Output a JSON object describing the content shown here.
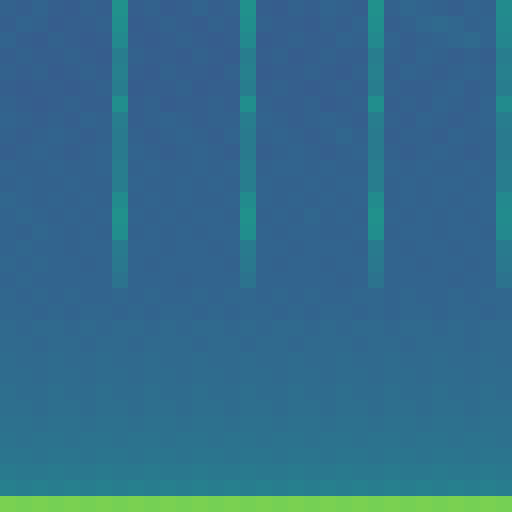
{
  "chart_data": {
    "type": "heatmap",
    "tick_labels": false,
    "cells": [
      [
        0.31,
        0.3,
        0.32,
        0.3,
        0.29,
        0.31,
        0.3,
        0.5,
        0.3,
        0.31,
        0.29,
        0.3,
        0.32,
        0.3,
        0.31,
        0.5,
        0.3,
        0.29,
        0.31,
        0.3,
        0.32,
        0.31,
        0.3,
        0.5,
        0.31,
        0.33,
        0.32,
        0.31,
        0.3,
        0.32,
        0.31,
        0.48
      ],
      [
        0.3,
        0.32,
        0.31,
        0.29,
        0.3,
        0.3,
        0.31,
        0.49,
        0.29,
        0.3,
        0.31,
        0.3,
        0.29,
        0.31,
        0.3,
        0.49,
        0.31,
        0.3,
        0.3,
        0.29,
        0.31,
        0.3,
        0.32,
        0.49,
        0.3,
        0.31,
        0.33,
        0.34,
        0.33,
        0.31,
        0.32,
        0.47
      ],
      [
        0.32,
        0.3,
        0.29,
        0.31,
        0.3,
        0.29,
        0.3,
        0.47,
        0.3,
        0.29,
        0.3,
        0.31,
        0.3,
        0.29,
        0.3,
        0.47,
        0.29,
        0.3,
        0.31,
        0.3,
        0.3,
        0.32,
        0.31,
        0.47,
        0.32,
        0.3,
        0.31,
        0.32,
        0.33,
        0.34,
        0.32,
        0.46
      ],
      [
        0.3,
        0.31,
        0.3,
        0.3,
        0.31,
        0.3,
        0.29,
        0.42,
        0.31,
        0.3,
        0.3,
        0.29,
        0.31,
        0.3,
        0.29,
        0.42,
        0.3,
        0.31,
        0.29,
        0.3,
        0.31,
        0.3,
        0.3,
        0.42,
        0.31,
        0.3,
        0.32,
        0.31,
        0.3,
        0.31,
        0.3,
        0.42
      ],
      [
        0.31,
        0.3,
        0.31,
        0.29,
        0.3,
        0.31,
        0.3,
        0.43,
        0.3,
        0.29,
        0.31,
        0.3,
        0.3,
        0.29,
        0.31,
        0.43,
        0.29,
        0.3,
        0.3,
        0.31,
        0.3,
        0.29,
        0.31,
        0.43,
        0.3,
        0.32,
        0.31,
        0.3,
        0.31,
        0.32,
        0.31,
        0.43
      ],
      [
        0.3,
        0.29,
        0.3,
        0.3,
        0.29,
        0.3,
        0.31,
        0.42,
        0.29,
        0.3,
        0.3,
        0.31,
        0.29,
        0.3,
        0.3,
        0.42,
        0.3,
        0.31,
        0.3,
        0.29,
        0.3,
        0.31,
        0.3,
        0.42,
        0.31,
        0.3,
        0.3,
        0.31,
        0.32,
        0.3,
        0.31,
        0.42
      ],
      [
        0.31,
        0.3,
        0.29,
        0.3,
        0.31,
        0.3,
        0.3,
        0.49,
        0.3,
        0.31,
        0.29,
        0.3,
        0.3,
        0.31,
        0.3,
        0.49,
        0.31,
        0.3,
        0.3,
        0.31,
        0.29,
        0.3,
        0.31,
        0.49,
        0.3,
        0.31,
        0.3,
        0.32,
        0.31,
        0.3,
        0.32,
        0.48
      ],
      [
        0.32,
        0.31,
        0.3,
        0.31,
        0.3,
        0.32,
        0.31,
        0.42,
        0.3,
        0.31,
        0.32,
        0.31,
        0.3,
        0.31,
        0.31,
        0.42,
        0.32,
        0.31,
        0.3,
        0.31,
        0.32,
        0.31,
        0.3,
        0.42,
        0.31,
        0.3,
        0.32,
        0.31,
        0.3,
        0.31,
        0.32,
        0.42
      ],
      [
        0.31,
        0.3,
        0.31,
        0.32,
        0.31,
        0.3,
        0.31,
        0.41,
        0.31,
        0.3,
        0.31,
        0.32,
        0.31,
        0.3,
        0.32,
        0.41,
        0.31,
        0.32,
        0.31,
        0.3,
        0.31,
        0.33,
        0.31,
        0.41,
        0.3,
        0.31,
        0.31,
        0.3,
        0.32,
        0.31,
        0.31,
        0.41
      ],
      [
        0.3,
        0.31,
        0.32,
        0.31,
        0.3,
        0.31,
        0.32,
        0.41,
        0.32,
        0.31,
        0.3,
        0.31,
        0.32,
        0.31,
        0.3,
        0.41,
        0.3,
        0.31,
        0.32,
        0.31,
        0.3,
        0.31,
        0.32,
        0.41,
        0.31,
        0.3,
        0.31,
        0.32,
        0.31,
        0.3,
        0.31,
        0.41
      ],
      [
        0.32,
        0.31,
        0.31,
        0.32,
        0.31,
        0.31,
        0.32,
        0.42,
        0.31,
        0.32,
        0.31,
        0.31,
        0.32,
        0.31,
        0.32,
        0.42,
        0.31,
        0.32,
        0.32,
        0.31,
        0.32,
        0.31,
        0.31,
        0.42,
        0.32,
        0.31,
        0.32,
        0.31,
        0.31,
        0.32,
        0.31,
        0.42
      ],
      [
        0.31,
        0.32,
        0.31,
        0.31,
        0.32,
        0.31,
        0.31,
        0.42,
        0.32,
        0.31,
        0.31,
        0.32,
        0.31,
        0.32,
        0.31,
        0.42,
        0.32,
        0.31,
        0.31,
        0.32,
        0.31,
        0.32,
        0.32,
        0.42,
        0.31,
        0.32,
        0.31,
        0.32,
        0.32,
        0.31,
        0.32,
        0.42
      ],
      [
        0.33,
        0.32,
        0.31,
        0.32,
        0.31,
        0.32,
        0.31,
        0.48,
        0.31,
        0.32,
        0.31,
        0.32,
        0.31,
        0.31,
        0.32,
        0.48,
        0.32,
        0.31,
        0.32,
        0.31,
        0.32,
        0.31,
        0.32,
        0.48,
        0.31,
        0.32,
        0.31,
        0.32,
        0.31,
        0.32,
        0.32,
        0.47
      ],
      [
        0.32,
        0.33,
        0.32,
        0.31,
        0.32,
        0.31,
        0.32,
        0.5,
        0.32,
        0.31,
        0.32,
        0.31,
        0.32,
        0.32,
        0.31,
        0.5,
        0.31,
        0.32,
        0.31,
        0.33,
        0.31,
        0.32,
        0.31,
        0.5,
        0.32,
        0.31,
        0.32,
        0.31,
        0.32,
        0.31,
        0.32,
        0.48
      ],
      [
        0.32,
        0.31,
        0.33,
        0.32,
        0.31,
        0.32,
        0.31,
        0.49,
        0.31,
        0.32,
        0.31,
        0.32,
        0.31,
        0.32,
        0.32,
        0.49,
        0.32,
        0.31,
        0.32,
        0.32,
        0.31,
        0.31,
        0.32,
        0.49,
        0.31,
        0.32,
        0.32,
        0.31,
        0.32,
        0.32,
        0.31,
        0.47
      ],
      [
        0.32,
        0.33,
        0.32,
        0.32,
        0.31,
        0.32,
        0.32,
        0.41,
        0.32,
        0.32,
        0.31,
        0.32,
        0.32,
        0.31,
        0.32,
        0.41,
        0.32,
        0.32,
        0.31,
        0.32,
        0.32,
        0.32,
        0.31,
        0.41,
        0.32,
        0.31,
        0.32,
        0.32,
        0.31,
        0.32,
        0.32,
        0.41
      ],
      [
        0.33,
        0.32,
        0.33,
        0.32,
        0.32,
        0.31,
        0.32,
        0.4,
        0.32,
        0.31,
        0.32,
        0.32,
        0.32,
        0.32,
        0.31,
        0.4,
        0.32,
        0.31,
        0.32,
        0.32,
        0.31,
        0.32,
        0.32,
        0.4,
        0.32,
        0.32,
        0.31,
        0.32,
        0.32,
        0.31,
        0.32,
        0.4
      ],
      [
        0.32,
        0.33,
        0.32,
        0.32,
        0.32,
        0.32,
        0.32,
        0.38,
        0.32,
        0.32,
        0.32,
        0.31,
        0.32,
        0.32,
        0.32,
        0.38,
        0.32,
        0.32,
        0.32,
        0.32,
        0.32,
        0.31,
        0.32,
        0.38,
        0.32,
        0.32,
        0.32,
        0.32,
        0.31,
        0.32,
        0.32,
        0.38
      ],
      [
        0.33,
        0.32,
        0.33,
        0.32,
        0.33,
        0.32,
        0.32,
        0.33,
        0.32,
        0.33,
        0.32,
        0.32,
        0.33,
        0.32,
        0.33,
        0.33,
        0.32,
        0.33,
        0.32,
        0.33,
        0.32,
        0.32,
        0.33,
        0.33,
        0.32,
        0.33,
        0.32,
        0.32,
        0.33,
        0.32,
        0.33,
        0.33
      ],
      [
        0.33,
        0.33,
        0.32,
        0.33,
        0.32,
        0.33,
        0.33,
        0.32,
        0.33,
        0.32,
        0.33,
        0.33,
        0.32,
        0.33,
        0.32,
        0.33,
        0.33,
        0.32,
        0.33,
        0.32,
        0.33,
        0.33,
        0.32,
        0.33,
        0.32,
        0.33,
        0.33,
        0.32,
        0.33,
        0.33,
        0.32,
        0.33
      ],
      [
        0.34,
        0.33,
        0.34,
        0.34,
        0.33,
        0.34,
        0.33,
        0.34,
        0.34,
        0.33,
        0.34,
        0.33,
        0.34,
        0.34,
        0.33,
        0.34,
        0.33,
        0.34,
        0.34,
        0.33,
        0.34,
        0.33,
        0.34,
        0.34,
        0.33,
        0.34,
        0.34,
        0.33,
        0.34,
        0.33,
        0.34,
        0.34
      ],
      [
        0.34,
        0.34,
        0.33,
        0.34,
        0.34,
        0.33,
        0.34,
        0.34,
        0.33,
        0.34,
        0.34,
        0.34,
        0.33,
        0.34,
        0.34,
        0.33,
        0.34,
        0.34,
        0.33,
        0.34,
        0.34,
        0.34,
        0.33,
        0.34,
        0.34,
        0.33,
        0.34,
        0.34,
        0.34,
        0.33,
        0.34,
        0.34
      ],
      [
        0.35,
        0.34,
        0.34,
        0.35,
        0.34,
        0.34,
        0.35,
        0.34,
        0.34,
        0.35,
        0.34,
        0.34,
        0.35,
        0.34,
        0.34,
        0.35,
        0.34,
        0.34,
        0.35,
        0.34,
        0.34,
        0.35,
        0.34,
        0.34,
        0.35,
        0.34,
        0.34,
        0.35,
        0.34,
        0.34,
        0.35,
        0.34
      ],
      [
        0.35,
        0.35,
        0.34,
        0.35,
        0.35,
        0.34,
        0.35,
        0.35,
        0.34,
        0.35,
        0.35,
        0.34,
        0.35,
        0.35,
        0.34,
        0.35,
        0.35,
        0.34,
        0.35,
        0.35,
        0.34,
        0.35,
        0.35,
        0.34,
        0.35,
        0.35,
        0.34,
        0.35,
        0.35,
        0.34,
        0.35,
        0.35
      ],
      [
        0.36,
        0.35,
        0.35,
        0.36,
        0.35,
        0.35,
        0.36,
        0.35,
        0.35,
        0.36,
        0.35,
        0.35,
        0.36,
        0.35,
        0.35,
        0.36,
        0.35,
        0.35,
        0.36,
        0.35,
        0.35,
        0.36,
        0.35,
        0.35,
        0.36,
        0.35,
        0.35,
        0.36,
        0.35,
        0.35,
        0.36,
        0.35
      ],
      [
        0.36,
        0.36,
        0.35,
        0.36,
        0.36,
        0.35,
        0.36,
        0.36,
        0.35,
        0.36,
        0.36,
        0.35,
        0.36,
        0.36,
        0.35,
        0.36,
        0.36,
        0.35,
        0.36,
        0.36,
        0.35,
        0.36,
        0.36,
        0.35,
        0.36,
        0.36,
        0.35,
        0.36,
        0.36,
        0.35,
        0.36,
        0.36
      ],
      [
        0.37,
        0.37,
        0.36,
        0.37,
        0.37,
        0.36,
        0.37,
        0.37,
        0.36,
        0.37,
        0.37,
        0.36,
        0.37,
        0.37,
        0.36,
        0.37,
        0.37,
        0.36,
        0.37,
        0.37,
        0.36,
        0.37,
        0.37,
        0.36,
        0.37,
        0.37,
        0.36,
        0.37,
        0.37,
        0.36,
        0.37,
        0.37
      ],
      [
        0.38,
        0.37,
        0.38,
        0.38,
        0.37,
        0.38,
        0.38,
        0.37,
        0.38,
        0.38,
        0.37,
        0.38,
        0.38,
        0.37,
        0.38,
        0.38,
        0.37,
        0.38,
        0.38,
        0.37,
        0.38,
        0.38,
        0.37,
        0.38,
        0.38,
        0.37,
        0.38,
        0.38,
        0.37,
        0.38,
        0.38,
        0.37
      ],
      [
        0.39,
        0.39,
        0.38,
        0.39,
        0.39,
        0.38,
        0.39,
        0.39,
        0.38,
        0.39,
        0.39,
        0.38,
        0.39,
        0.39,
        0.38,
        0.39,
        0.39,
        0.38,
        0.39,
        0.39,
        0.38,
        0.39,
        0.39,
        0.38,
        0.39,
        0.39,
        0.38,
        0.39,
        0.39,
        0.38,
        0.39,
        0.39
      ],
      [
        0.41,
        0.4,
        0.4,
        0.41,
        0.4,
        0.4,
        0.41,
        0.4,
        0.4,
        0.41,
        0.4,
        0.4,
        0.41,
        0.4,
        0.4,
        0.41,
        0.4,
        0.4,
        0.41,
        0.4,
        0.4,
        0.41,
        0.4,
        0.4,
        0.41,
        0.4,
        0.4,
        0.41,
        0.4,
        0.4,
        0.41,
        0.4
      ],
      [
        0.43,
        0.42,
        0.43,
        0.42,
        0.43,
        0.42,
        0.43,
        0.42,
        0.43,
        0.42,
        0.43,
        0.42,
        0.43,
        0.42,
        0.43,
        0.42,
        0.43,
        0.42,
        0.43,
        0.42,
        0.43,
        0.42,
        0.43,
        0.42,
        0.43,
        0.42,
        0.43,
        0.42,
        0.43,
        0.42,
        0.43,
        0.42
      ],
      [
        0.8,
        0.79,
        0.8,
        0.79,
        0.8,
        0.79,
        0.8,
        0.79,
        0.8,
        0.79,
        0.8,
        0.79,
        0.8,
        0.79,
        0.8,
        0.79,
        0.8,
        0.79,
        0.8,
        0.79,
        0.8,
        0.79,
        0.8,
        0.79,
        0.8,
        0.79,
        0.8,
        0.79,
        0.8,
        0.79,
        0.8,
        0.79
      ]
    ]
  }
}
